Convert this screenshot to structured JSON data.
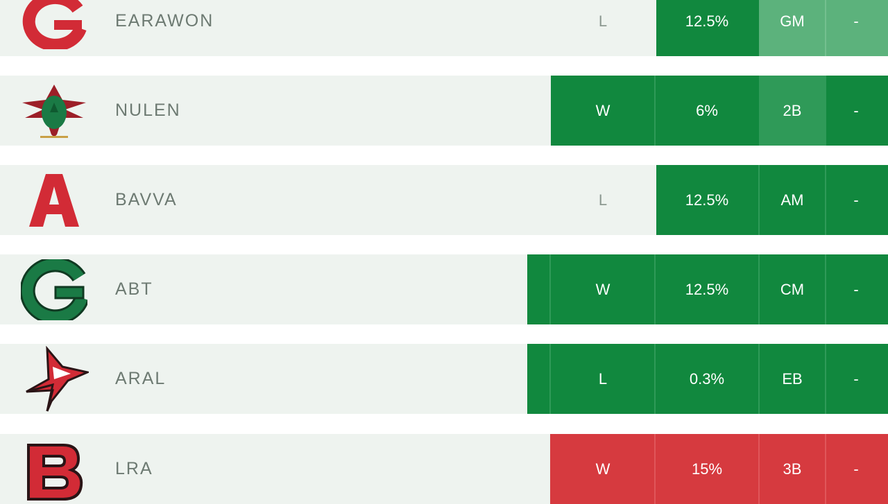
{
  "colors": {
    "row_bg": "#eef3ef",
    "green": "#11883e",
    "green_alt": "#2f9a58",
    "green_pale": "#5cb27c",
    "red": "#d63a3f",
    "red_alt": "#e0565a",
    "logo_red": "#d22b36",
    "logo_green": "#1a7a45"
  },
  "rows": [
    {
      "logo_icon": "g-letter-red-icon",
      "team": "EARAWON",
      "result": "L",
      "pct": "12.5%",
      "code": "GM",
      "extra": "-"
    },
    {
      "logo_icon": "bird-emblem-icon",
      "team": "NULEN",
      "result": "W",
      "pct": "6%",
      "code": "2B",
      "extra": "-"
    },
    {
      "logo_icon": "a-letter-red-icon",
      "team": "BAVVA",
      "result": "L",
      "pct": "12.5%",
      "code": "AM",
      "extra": "-"
    },
    {
      "logo_icon": "g-letter-green-icon",
      "team": "ABT",
      "result": "W",
      "pct": "12.5%",
      "code": "CM",
      "extra": "-"
    },
    {
      "logo_icon": "cardinal-head-icon",
      "team": "ARAL",
      "result": "L",
      "pct": "0.3%",
      "code": "EB",
      "extra": "-"
    },
    {
      "logo_icon": "b-letter-red-icon",
      "team": "LRA",
      "result": "W",
      "pct": "15%",
      "code": "3B",
      "extra": "-"
    }
  ]
}
